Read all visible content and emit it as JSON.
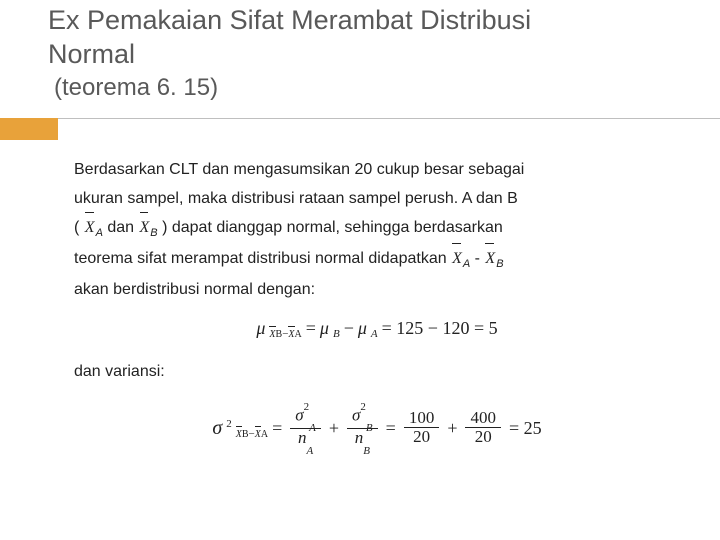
{
  "title": {
    "line1": "Ex Pemakaian Sifat Merambat Distribusi",
    "line2": "Normal",
    "sub": "(teorema 6. 15)"
  },
  "body": {
    "p1a": "Berdasarkan CLT dan mengasumsikan 20 cukup besar sebagai",
    "p1b": "ukuran sampel, maka distribusi rataan sampel perush. A dan B",
    "p1c_pre": "( ",
    "xbarA": "X",
    "subA": "A",
    "dan": " dan ",
    "xbarB": "X",
    "subB": "B",
    "p1c_post": " ) dapat dianggap normal, sehingga berdasarkan",
    "p1d_pre": "teorema sifat merampat distribusi normal didapatkan ",
    "minus": " - ",
    "p1e": "akan berdistribusi normal dengan:",
    "dan_var": "dan variansi:"
  },
  "eq1": {
    "mu": "μ",
    "sub_lhs_b": "X",
    "sub_lhs_b_s": "B",
    "sub_lhs_a": "X",
    "sub_lhs_a_s": "A",
    "eq": " = ",
    "muB": "μ",
    "sB": "B",
    "min": " − ",
    "muA": "μ",
    "sA": "A",
    "rhs": " = 125 − 120 = 5"
  },
  "eq2": {
    "sigma": "σ",
    "sup2": "2",
    "sub_b": "X",
    "sub_b_s": "B",
    "sub_a": "X",
    "sub_a_s": "A",
    "eq": " = ",
    "sigA_num": "σ",
    "sigA_sup": "2",
    "sigA_sub": "A",
    "nA": "n",
    "nA_sub": "A",
    "plus": " + ",
    "sigB_num": "σ",
    "sigB_sup": "2",
    "sigB_sub": "B",
    "nB": "n",
    "nB_sub": "B",
    "f1n": "100",
    "f1d": "20",
    "f2n": "400",
    "f2d": "20",
    "res": " = 25"
  },
  "colors": {
    "accent": "#e8a23a",
    "title": "#595959",
    "text": "#222222"
  }
}
